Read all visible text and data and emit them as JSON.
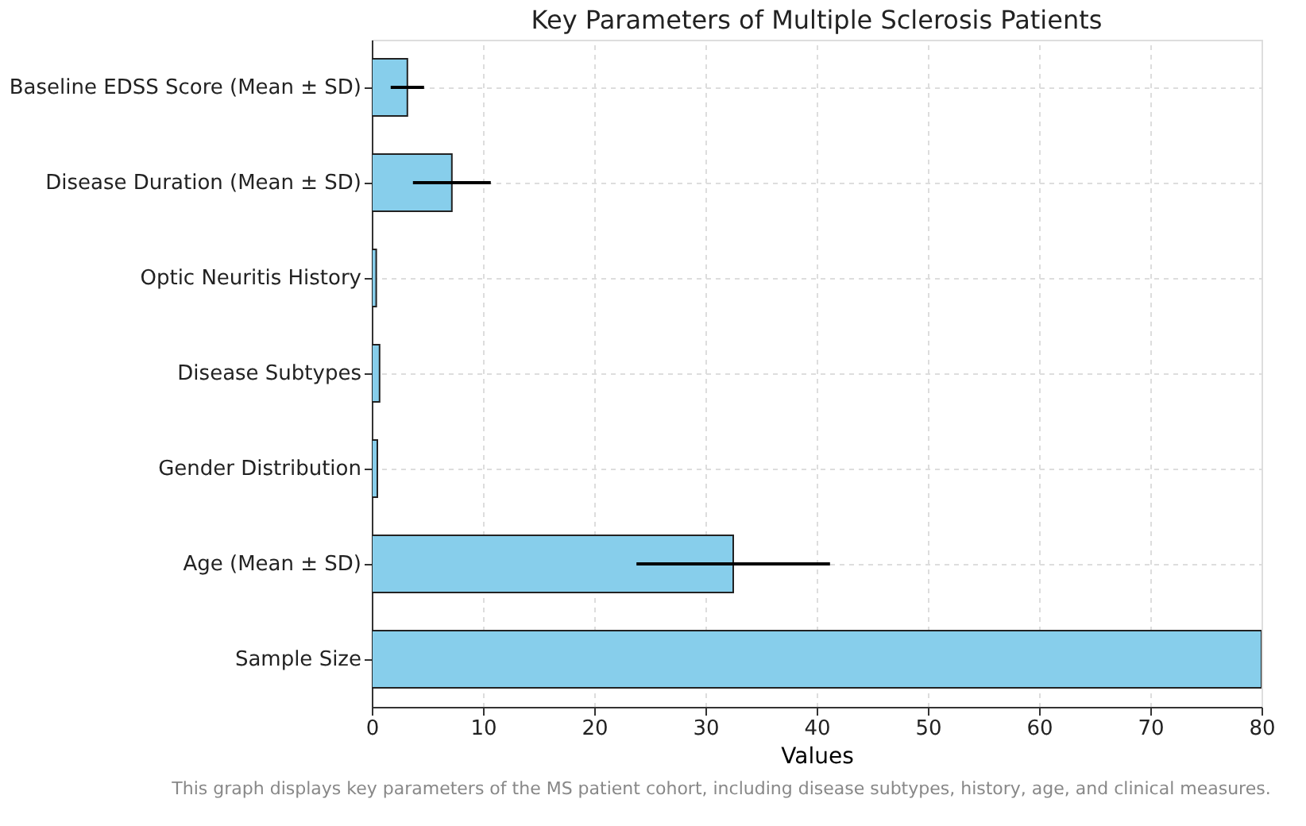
{
  "chart_data": {
    "type": "bar",
    "orientation": "horizontal",
    "title": "Key Parameters of Multiple Sclerosis Patients",
    "xlabel": "Values",
    "categories": [
      "Baseline EDSS Score (Mean ± SD)",
      "Disease Duration (Mean ± SD)",
      "Optic Neuritis History",
      "Disease Subtypes",
      "Gender Distribution",
      "Age (Mean ± SD)",
      "Sample Size"
    ],
    "values": [
      3.2,
      7.2,
      0.4,
      0.7,
      0.5,
      32.5,
      80
    ],
    "errors": [
      1.5,
      3.5,
      null,
      null,
      null,
      8.7,
      null
    ],
    "color": "#87ceeb",
    "xlim": [
      0,
      80
    ],
    "xticks": [
      0,
      10,
      20,
      30,
      40,
      50,
      60,
      70,
      80
    ],
    "grid": true,
    "annotations": [
      "This graph displays key parameters of the MS patient cohort, including disease subtypes, history, age, and clinical measures."
    ]
  }
}
